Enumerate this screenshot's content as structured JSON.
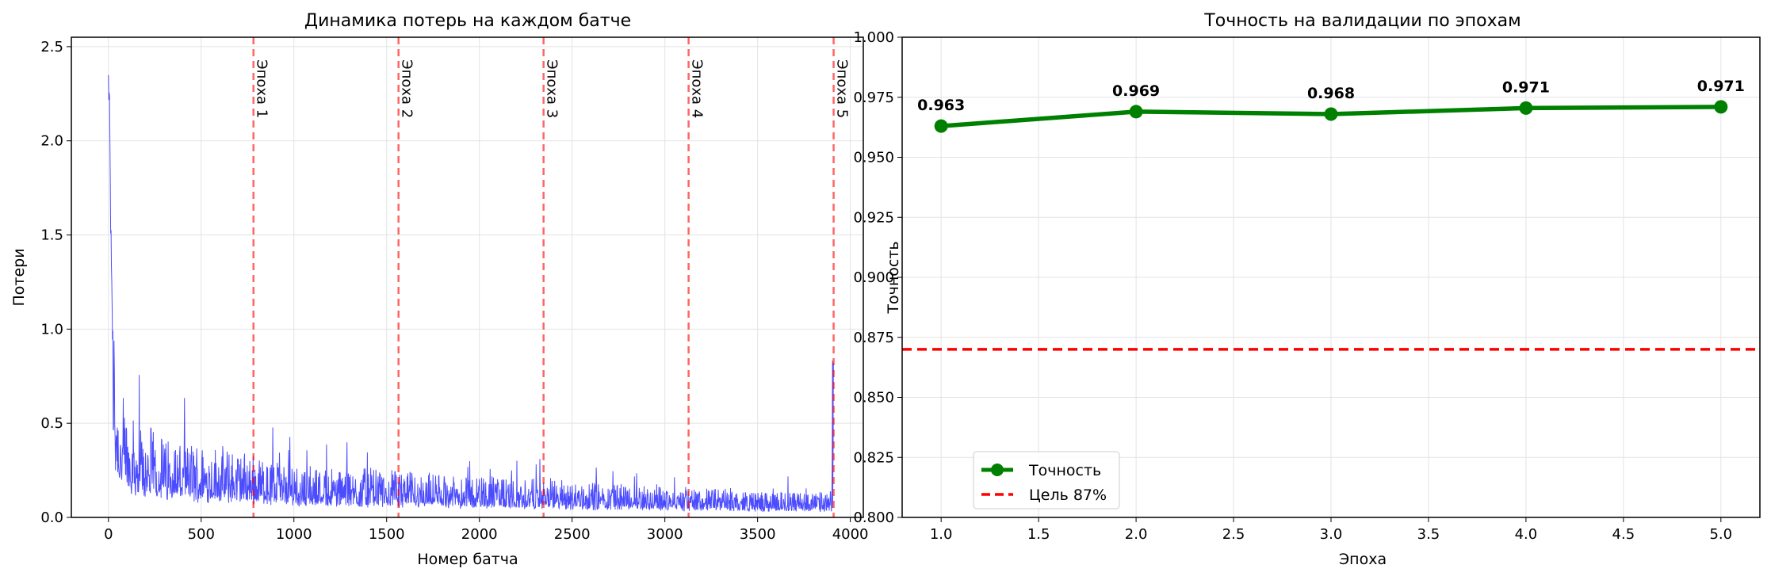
{
  "chart_data": [
    {
      "type": "line",
      "title": "Динамика потерь на каждом батче",
      "xlabel": "Номер батча",
      "ylabel": "Потери",
      "xlim": [
        -200,
        4070
      ],
      "ylim": [
        0,
        2.55
      ],
      "xticks": [
        0,
        500,
        1000,
        1500,
        2000,
        2500,
        3000,
        3500,
        4000
      ],
      "yticks": [
        0.0,
        0.5,
        1.0,
        1.5,
        2.0,
        2.5
      ],
      "grid": true,
      "series": [
        {
          "color": "#0000ff",
          "alpha": 0.7,
          "n_points": 3910,
          "sampled_x": [
            0,
            5,
            10,
            15,
            20,
            30,
            40,
            50,
            60,
            80,
            100,
            150,
            200,
            300,
            400,
            500,
            600,
            700,
            780,
            900,
            1000,
            1200,
            1400,
            1560,
            1800,
            2000,
            2200,
            2340,
            2600,
            2800,
            3000,
            3120,
            3300,
            3500,
            3700,
            3900,
            3905
          ],
          "sampled_y": [
            2.31,
            2.2,
            1.75,
            1.35,
            1.05,
            0.72,
            0.55,
            0.45,
            0.4,
            0.36,
            0.33,
            0.3,
            0.27,
            0.25,
            0.23,
            0.22,
            0.21,
            0.2,
            0.19,
            0.17,
            0.16,
            0.15,
            0.145,
            0.14,
            0.13,
            0.125,
            0.12,
            0.115,
            0.105,
            0.1,
            0.095,
            0.09,
            0.085,
            0.08,
            0.078,
            0.075,
            0.82
          ]
        }
      ],
      "epoch_lines": [
        {
          "x": 782,
          "label": "Эпоха 1"
        },
        {
          "x": 1564,
          "label": "Эпоха 2"
        },
        {
          "x": 2346,
          "label": "Эпоха 3"
        },
        {
          "x": 3128,
          "label": "Эпоха 4"
        },
        {
          "x": 3910,
          "label": "Эпоха 5"
        }
      ],
      "epoch_line_color": "#ff0000"
    },
    {
      "type": "line",
      "title": "Точность на валидации по эпохам",
      "xlabel": "Эпоха",
      "ylabel": "Точность",
      "xlim": [
        0.8,
        5.2
      ],
      "ylim": [
        0.8,
        1.0
      ],
      "xticks": [
        1.0,
        1.5,
        2.0,
        2.5,
        3.0,
        3.5,
        4.0,
        4.5,
        5.0
      ],
      "yticks": [
        0.8,
        0.825,
        0.85,
        0.875,
        0.9,
        0.925,
        0.95,
        0.975,
        1.0
      ],
      "grid": true,
      "series": [
        {
          "name": "Точность",
          "color": "#008000",
          "x": [
            1,
            2,
            3,
            4,
            5
          ],
          "y": [
            0.963,
            0.969,
            0.968,
            0.9705,
            0.971
          ],
          "point_labels": [
            "0.963",
            "0.969",
            "0.968",
            "0.971",
            "0.971"
          ]
        }
      ],
      "target_line": {
        "y": 0.87,
        "label": "Цель 87%",
        "color": "#ff0000"
      },
      "legend_position": "lower-left"
    }
  ]
}
